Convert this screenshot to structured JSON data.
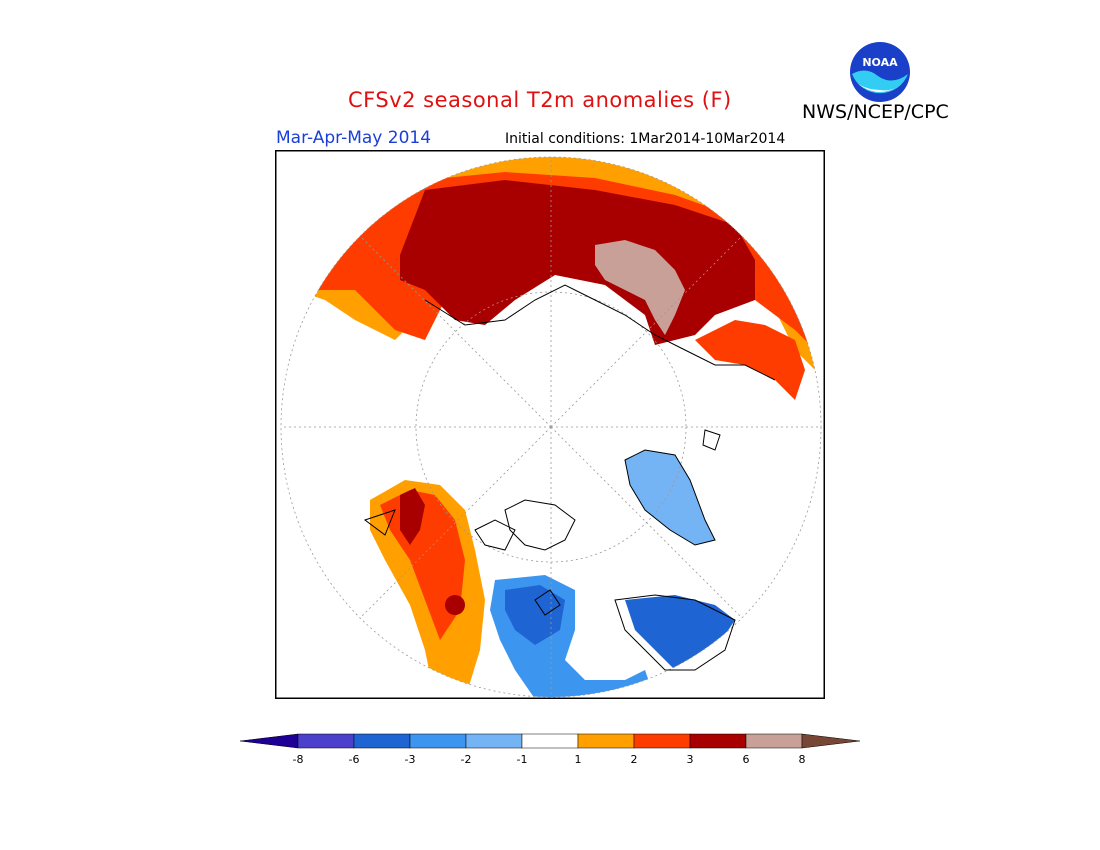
{
  "header": {
    "title": "CFSv2 seasonal T2m anomalies (F)",
    "period": "Mar-Apr-May 2014",
    "initial_conditions": "Initial conditions: 1Mar2014-10Mar2014",
    "agency": "NWS/NCEP/CPC"
  },
  "logo": {
    "text": "NOAA",
    "icon": "noaa-logo"
  },
  "map": {
    "projection": "north-polar-stereographic",
    "variable": "2m temperature anomaly",
    "units": "F",
    "features": [
      {
        "region": "northern Eurasia / Siberia",
        "category": "3 to 6",
        "color": "#a80000"
      },
      {
        "region": "central Siberia core",
        "category": "6 to 8",
        "color": "#c8a098"
      },
      {
        "region": "Europe / Russia rim",
        "category": "2 to 3",
        "color": "#ff3c00"
      },
      {
        "region": "East Asia rim",
        "category": "2 to 3",
        "color": "#ff3c00"
      },
      {
        "region": "Alaska and western Canada",
        "category": "2 to 3",
        "color": "#ff3c00"
      },
      {
        "region": "Greenland",
        "category": "-2 to -1",
        "color": "#74b4f4"
      },
      {
        "region": "central/eastern Canada",
        "category": "-6 to -3",
        "color": "#1e64d2"
      },
      {
        "region": "US Midwest",
        "category": "-3 to -2",
        "color": "#3c96f0"
      }
    ]
  },
  "colorbar": {
    "levels": [
      "-8",
      "-6",
      "-3",
      "-2",
      "-1",
      "1",
      "2",
      "3",
      "6",
      "8"
    ],
    "colors": [
      "#1e0096",
      "#4a40cc",
      "#1e64d2",
      "#3c96f0",
      "#74b4f4",
      "#ffffff",
      "#ffa000",
      "#ff3c00",
      "#a80000",
      "#c8a098",
      "#784634"
    ]
  }
}
